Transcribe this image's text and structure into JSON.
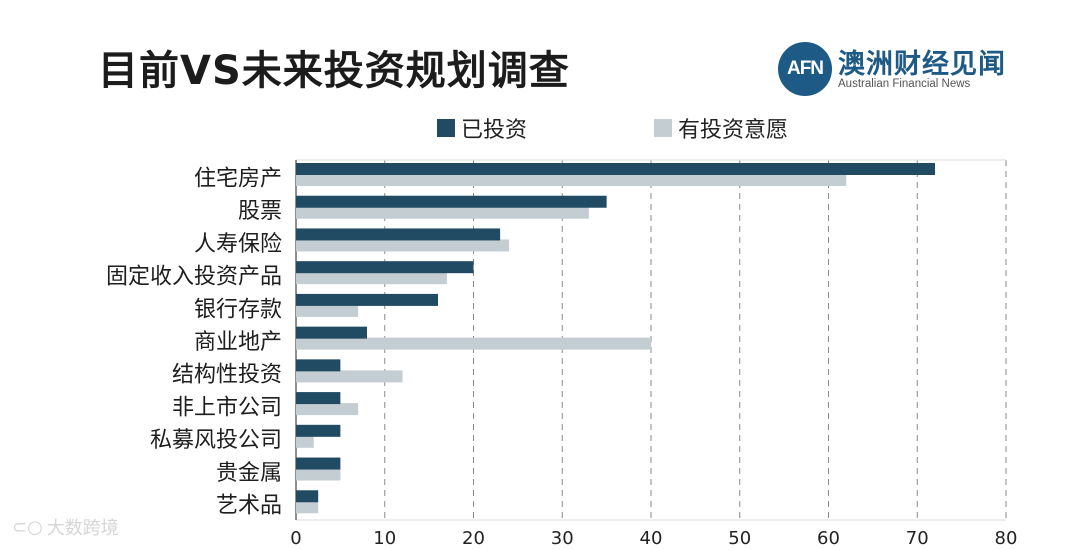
{
  "title": "目前VS未来投资规划调查",
  "logo": {
    "mark": "AFN",
    "name_cn": "澳洲财经见闻",
    "name_en": "Australian Financial News"
  },
  "watermark": "大数跨境",
  "chart_data": {
    "type": "bar",
    "orientation": "horizontal",
    "categories": [
      "住宅房产",
      "股票",
      "人寿保险",
      "固定收入投资产品",
      "银行存款",
      "商业地产",
      "结构性投资",
      "非上市公司",
      "私募风投公司",
      "贵金属",
      "艺术品"
    ],
    "series": [
      {
        "name": "已投资",
        "color": "#214a63",
        "values": [
          72,
          35,
          23,
          20,
          16,
          8,
          5,
          5,
          5,
          5,
          2.5
        ]
      },
      {
        "name": "有投资意愿",
        "color": "#c4cdd2",
        "values": [
          62,
          33,
          24,
          17,
          7,
          40,
          12,
          7,
          2,
          5,
          2.5
        ]
      }
    ],
    "xlim": [
      0,
      80
    ],
    "xticks": [
      0,
      10,
      20,
      30,
      40,
      50,
      60,
      70,
      80
    ],
    "grid": "vertical-dashed",
    "legend": "top"
  }
}
